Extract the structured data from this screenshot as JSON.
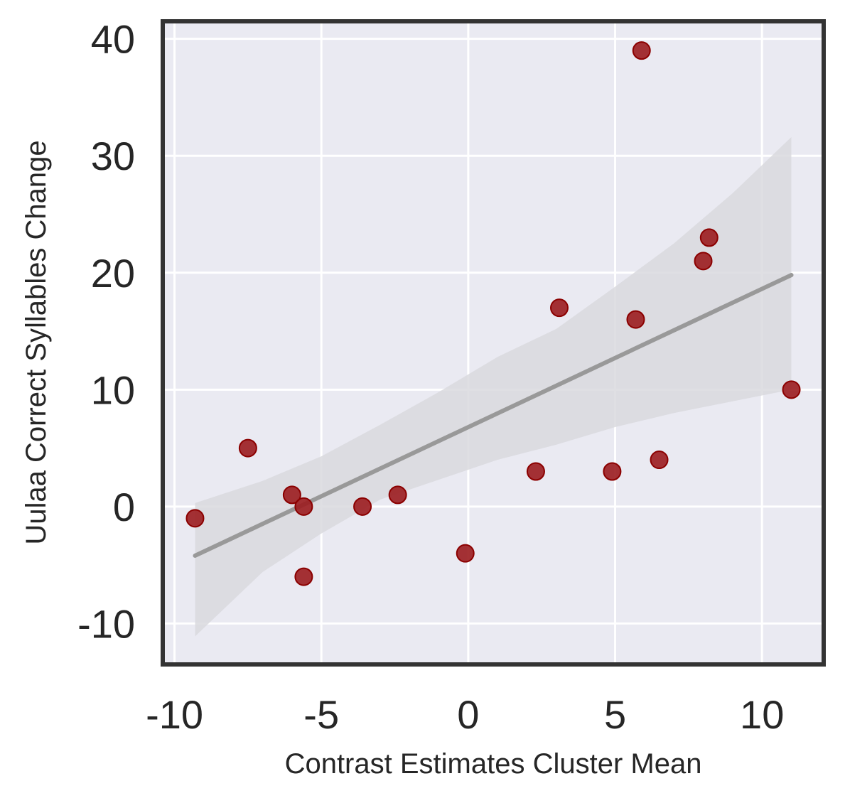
{
  "chart_data": {
    "type": "scatter",
    "title": "",
    "xlabel": "Contrast Estimates Cluster Mean",
    "ylabel": "Uulaa Correct Syllables Change",
    "xlim": [
      -10.4,
      12.1
    ],
    "ylim": [
      -13.5,
      41.5
    ],
    "xticks": [
      -10,
      -5,
      0,
      5,
      10
    ],
    "yticks": [
      -10,
      0,
      10,
      20,
      30,
      40
    ],
    "xtick_labels": [
      "-10",
      "-5",
      "0",
      "5",
      "10"
    ],
    "ytick_labels": [
      "-10",
      "0",
      "10",
      "20",
      "30",
      "40"
    ],
    "grid": true,
    "legend": "none",
    "points": [
      {
        "x": -9.3,
        "y": -1
      },
      {
        "x": -7.5,
        "y": 5
      },
      {
        "x": -6.0,
        "y": 1
      },
      {
        "x": -5.6,
        "y": 0
      },
      {
        "x": -5.6,
        "y": -6
      },
      {
        "x": -3.6,
        "y": 0
      },
      {
        "x": -2.4,
        "y": 1
      },
      {
        "x": -0.1,
        "y": -4
      },
      {
        "x": 2.3,
        "y": 3
      },
      {
        "x": 3.1,
        "y": 17
      },
      {
        "x": 4.9,
        "y": 3
      },
      {
        "x": 5.7,
        "y": 16
      },
      {
        "x": 5.9,
        "y": 39
      },
      {
        "x": 6.5,
        "y": 4
      },
      {
        "x": 8.0,
        "y": 21
      },
      {
        "x": 8.2,
        "y": 23
      },
      {
        "x": 11.0,
        "y": 10
      }
    ],
    "regression": {
      "x": [
        -9.3,
        11.0
      ],
      "y": [
        -4.2,
        19.8
      ]
    },
    "confidence_band": {
      "x": [
        -9.3,
        -7.0,
        -5.0,
        -3.0,
        -1.0,
        1.0,
        3.0,
        5.0,
        7.0,
        9.0,
        11.0
      ],
      "upper": [
        0.3,
        2.2,
        4.3,
        7.0,
        9.8,
        12.8,
        15.2,
        18.8,
        22.5,
        26.8,
        31.6
      ],
      "lower": [
        -11.1,
        -5.6,
        -2.3,
        0.6,
        2.3,
        4.0,
        5.3,
        6.8,
        8.0,
        9.0,
        10.0
      ]
    },
    "colors": {
      "background": "#eaeaf2",
      "grid": "#ffffff",
      "frame": "#333333",
      "point_fill": "#9b1c1f",
      "point_edge": "#8b0000",
      "regression_line": "#999999",
      "band": "#d9d9de"
    }
  }
}
